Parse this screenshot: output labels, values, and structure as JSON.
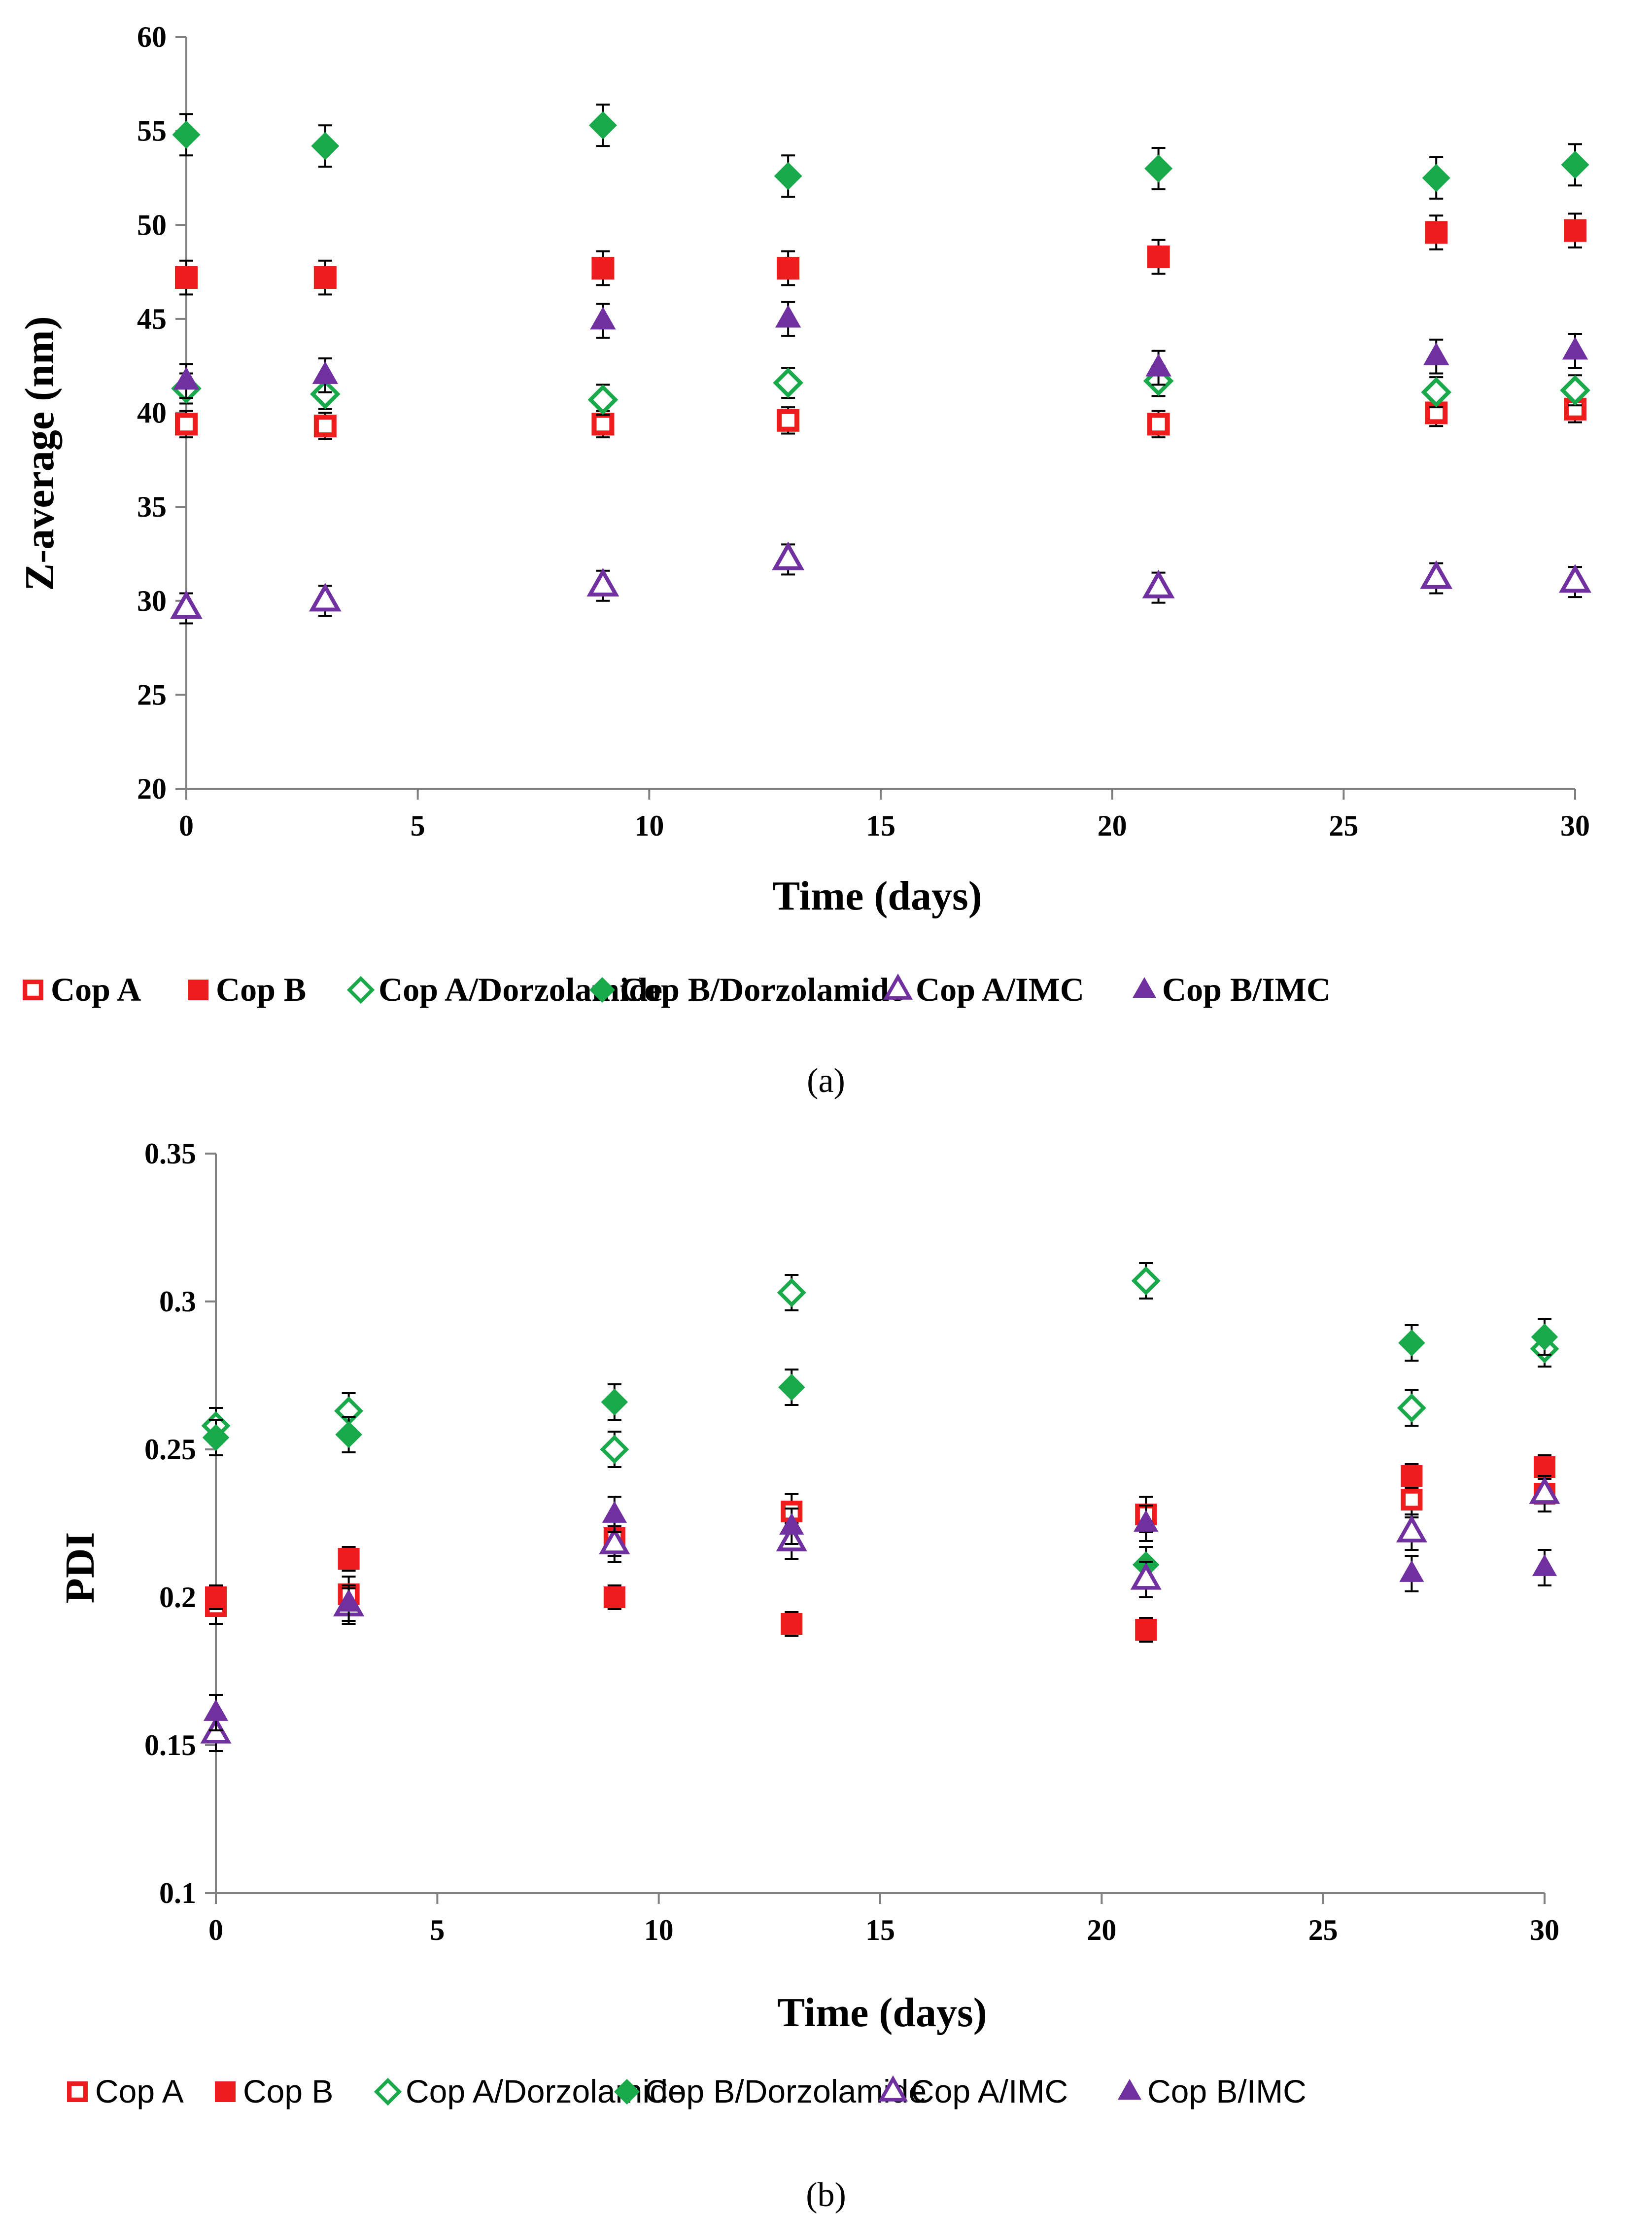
{
  "colors": {
    "red": "#ee1c1c",
    "green": "#19a94b",
    "purple": "#7030a0",
    "axis": "#808080",
    "err": "#000000"
  },
  "chart_data": [
    {
      "type": "scatter",
      "caption": "(a)",
      "xlabel": "Time (days)",
      "ylabel": "Z-average (nm)",
      "xlim": [
        0,
        30
      ],
      "ylim": [
        20,
        60
      ],
      "xticks": [
        "0",
        "5",
        "10",
        "15",
        "20",
        "25",
        "30"
      ],
      "yticks": [
        "20",
        "25",
        "30",
        "35",
        "40",
        "45",
        "50",
        "55",
        "60"
      ],
      "legend_position": "bottom",
      "x": [
        0,
        3,
        9,
        13,
        21,
        27,
        30
      ],
      "series": [
        {
          "name": "Cop A",
          "marker": "square-open",
          "color": "#ee1c1c",
          "values": [
            39.4,
            39.3,
            39.4,
            39.6,
            39.4,
            40.0,
            40.2
          ],
          "err": 0.7
        },
        {
          "name": "Cop B",
          "marker": "square-filled",
          "color": "#ee1c1c",
          "values": [
            47.2,
            47.2,
            47.7,
            47.7,
            48.3,
            49.6,
            49.7
          ],
          "err": 0.9
        },
        {
          "name": "Cop A/Dorzolamide",
          "marker": "diamond-open",
          "color": "#19a94b",
          "values": [
            41.3,
            41.0,
            40.7,
            41.6,
            41.7,
            41.1,
            41.2
          ],
          "err": 0.8
        },
        {
          "name": "Cop B/Dorzolamide",
          "marker": "diamond-filled",
          "color": "#19a94b",
          "values": [
            54.8,
            54.2,
            55.3,
            52.6,
            53.0,
            52.5,
            53.2
          ],
          "err": 1.1
        },
        {
          "name": "Cop A/IMC",
          "marker": "triangle-open",
          "color": "#7030a0",
          "values": [
            29.6,
            30.0,
            30.8,
            32.2,
            30.7,
            31.2,
            31.0
          ],
          "err": 0.8
        },
        {
          "name": "Cop B/IMC",
          "marker": "triangle-filled",
          "color": "#7030a0",
          "values": [
            41.7,
            42.0,
            44.9,
            45.0,
            42.4,
            43.0,
            43.3
          ],
          "err": 0.9
        }
      ]
    },
    {
      "type": "scatter",
      "caption": "(b)",
      "xlabel": "Time (days)",
      "ylabel": "PDI",
      "xlim": [
        0,
        30
      ],
      "ylim": [
        0.1,
        0.35
      ],
      "xticks": [
        "0",
        "5",
        "10",
        "15",
        "20",
        "25",
        "30"
      ],
      "yticks": [
        "0.1",
        "0.15",
        "0.2",
        "0.25",
        "0.3",
        "0.35"
      ],
      "legend_position": "bottom",
      "x": [
        0,
        3,
        9,
        13,
        21,
        27,
        30
      ],
      "series": [
        {
          "name": "Cop A",
          "marker": "square-open",
          "color": "#ee1c1c",
          "values": [
            0.197,
            0.201,
            0.22,
            0.229,
            0.228,
            0.233,
            0.235
          ],
          "err": 0.006
        },
        {
          "name": "Cop B",
          "marker": "square-filled",
          "color": "#ee1c1c",
          "values": [
            0.2,
            0.213,
            0.2,
            0.191,
            0.189,
            0.241,
            0.244
          ],
          "err": 0.004
        },
        {
          "name": "Cop A/Dorzolamide",
          "marker": "diamond-open",
          "color": "#19a94b",
          "values": [
            0.258,
            0.263,
            0.25,
            0.303,
            0.307,
            0.264,
            0.284
          ],
          "err": 0.006
        },
        {
          "name": "Cop B/Dorzolamide",
          "marker": "diamond-filled",
          "color": "#19a94b",
          "values": [
            0.254,
            0.255,
            0.266,
            0.271,
            0.211,
            0.286,
            0.288
          ],
          "err": 0.006
        },
        {
          "name": "Cop A/IMC",
          "marker": "triangle-open",
          "color": "#7030a0",
          "values": [
            0.154,
            0.197,
            0.218,
            0.219,
            0.206,
            0.222,
            0.235
          ],
          "err": 0.006
        },
        {
          "name": "Cop B/IMC",
          "marker": "triangle-filled",
          "color": "#7030a0",
          "values": [
            0.161,
            0.198,
            0.228,
            0.224,
            0.225,
            0.208,
            0.21
          ],
          "err": 0.006
        }
      ]
    }
  ]
}
